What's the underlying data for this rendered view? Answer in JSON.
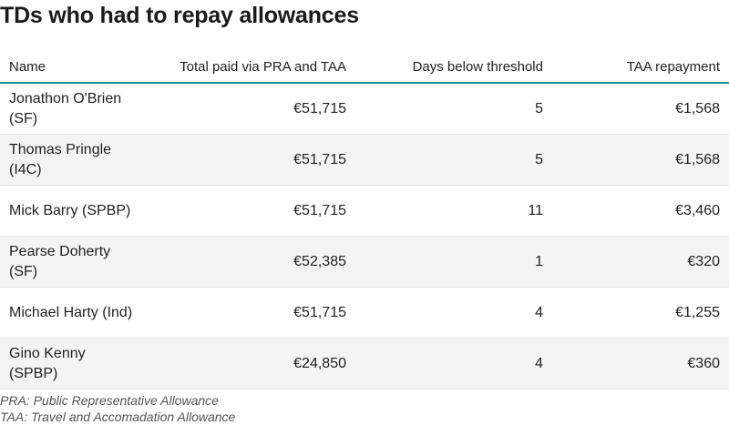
{
  "title": "TDs who had to repay allowances",
  "chart_data": {
    "type": "table",
    "columns": [
      "Name",
      "Total paid via PRA and TAA",
      "Days below threshold",
      "TAA repayment"
    ],
    "rows": [
      [
        "Jonathon O'Brien (SF)",
        "€51,715",
        "5",
        "€1,568"
      ],
      [
        "Thomas Pringle (I4C)",
        "€51,715",
        "5",
        "€1,568"
      ],
      [
        "Mick Barry (SPBP)",
        "€51,715",
        "11",
        "€3,460"
      ],
      [
        "Pearse Doherty (SF)",
        "€52,385",
        "1",
        "€320"
      ],
      [
        "Michael Harty (Ind)",
        "€51,715",
        "4",
        "€1,255"
      ],
      [
        "Gino Kenny (SPBP)",
        "€24,850",
        "4",
        "€360"
      ]
    ],
    "header_rule_color": "#1e8c99",
    "stripe_color": "#f4f4f4"
  },
  "notes": [
    "PRA: Public Representative Allowance",
    "TAA: Travel and Accomadation Allowance"
  ]
}
